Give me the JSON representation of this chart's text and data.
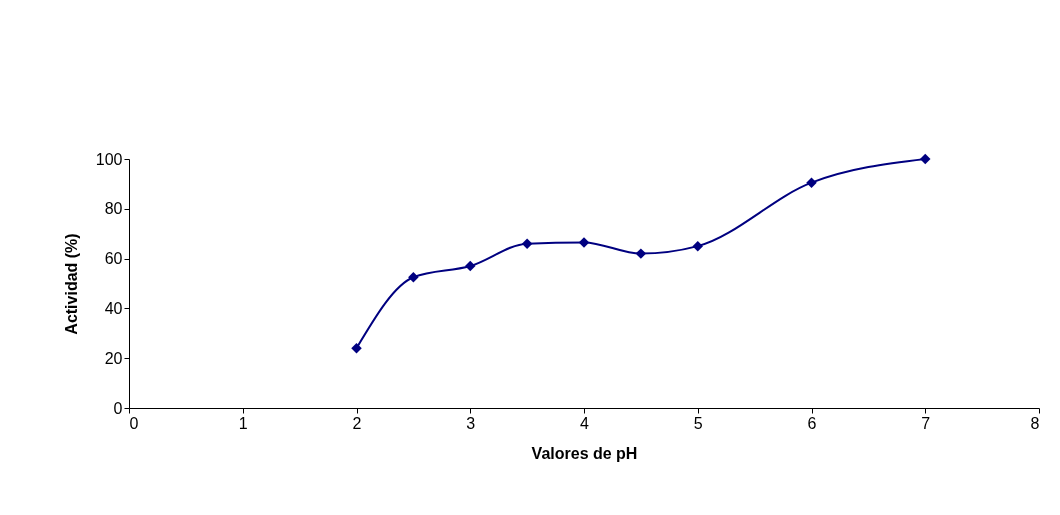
{
  "chart_data": {
    "type": "line",
    "xlabel": "Valores de pH",
    "ylabel": "Actividad (%)",
    "x": [
      2,
      2.5,
      3,
      3.5,
      4,
      4.5,
      5,
      6,
      7
    ],
    "series": [
      {
        "color": "#000080",
        "values": [
          24,
          52.5,
          57,
          66,
          66.5,
          62,
          65,
          90.5,
          100
        ]
      }
    ],
    "xlim": [
      0,
      8
    ],
    "xticks": [
      0,
      1,
      2,
      3,
      4,
      5,
      6,
      7,
      8
    ],
    "ylim": [
      0,
      100
    ],
    "yticks": [
      0,
      20,
      40,
      60,
      80,
      100
    ],
    "grid": false,
    "legend": false,
    "marker": "diamond",
    "line_style": "solid"
  }
}
